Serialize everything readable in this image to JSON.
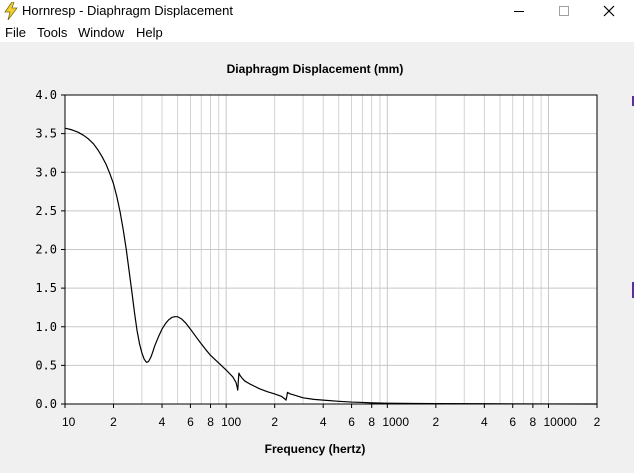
{
  "window": {
    "title": "Hornresp - Diaphragm Displacement",
    "icon": "lightning-bolt-icon",
    "controls": {
      "minimize": "minimize-icon",
      "maximize": "maximize-icon",
      "close": "close-icon"
    }
  },
  "menu": {
    "items": [
      {
        "label": "File"
      },
      {
        "label": "Tools"
      },
      {
        "label": "Window"
      },
      {
        "label": "Help"
      }
    ]
  },
  "colors": {
    "plot_background": "#ffffff",
    "grid": "#c8c8c8",
    "curve": "#000000",
    "window_background": "#f0f0f0",
    "accent_edge": "#5a2e9c"
  },
  "chart_data": {
    "type": "line",
    "title": "Diaphragm Displacement (mm)",
    "xlabel": "Frequency (hertz)",
    "ylabel": "",
    "x_scale": "log",
    "xlim": [
      10,
      20000
    ],
    "ylim": [
      0,
      4
    ],
    "grid": true,
    "y_ticks": [
      "0.0",
      "0.5",
      "1.0",
      "1.5",
      "2.0",
      "2.5",
      "3.0",
      "3.5",
      "4.0"
    ],
    "x_tick_labels": [
      {
        "value": 10,
        "label": "10"
      },
      {
        "value": 20,
        "label": "2"
      },
      {
        "value": 40,
        "label": "4"
      },
      {
        "value": 60,
        "label": "6"
      },
      {
        "value": 80,
        "label": "8"
      },
      {
        "value": 100,
        "label": "100"
      },
      {
        "value": 200,
        "label": "2"
      },
      {
        "value": 400,
        "label": "4"
      },
      {
        "value": 600,
        "label": "6"
      },
      {
        "value": 800,
        "label": "8"
      },
      {
        "value": 1000,
        "label": "1000"
      },
      {
        "value": 2000,
        "label": "2"
      },
      {
        "value": 4000,
        "label": "4"
      },
      {
        "value": 6000,
        "label": "6"
      },
      {
        "value": 8000,
        "label": "8"
      },
      {
        "value": 10000,
        "label": "10000"
      },
      {
        "value": 20000,
        "label": "2"
      }
    ],
    "series": [
      {
        "x": [
          10,
          11,
          12,
          13,
          14,
          15,
          16,
          17,
          18,
          19,
          20,
          21,
          22,
          23,
          24,
          25,
          26,
          27,
          28,
          29,
          30,
          31,
          32,
          33,
          34,
          35,
          36,
          38,
          40,
          42,
          44,
          46,
          48,
          50,
          53,
          56,
          60,
          65,
          70,
          75,
          80,
          90,
          100,
          110,
          115,
          117,
          118,
          119,
          120,
          122,
          125,
          130,
          140,
          150,
          160,
          180,
          200,
          220,
          230,
          235,
          238,
          240,
          245,
          250,
          260,
          280,
          300,
          350,
          400,
          500,
          600,
          700,
          800,
          1000,
          1500,
          2000,
          4000,
          10000,
          20000
        ],
        "y": [
          3.57,
          3.55,
          3.52,
          3.48,
          3.43,
          3.37,
          3.29,
          3.2,
          3.1,
          2.98,
          2.85,
          2.68,
          2.48,
          2.25,
          2.0,
          1.72,
          1.45,
          1.18,
          0.95,
          0.78,
          0.66,
          0.58,
          0.54,
          0.55,
          0.6,
          0.67,
          0.75,
          0.87,
          0.97,
          1.04,
          1.09,
          1.12,
          1.13,
          1.13,
          1.1,
          1.05,
          0.97,
          0.87,
          0.78,
          0.7,
          0.63,
          0.53,
          0.44,
          0.35,
          0.28,
          0.22,
          0.18,
          0.3,
          0.4,
          0.37,
          0.34,
          0.3,
          0.26,
          0.23,
          0.2,
          0.16,
          0.13,
          0.1,
          0.07,
          0.05,
          0.1,
          0.15,
          0.14,
          0.13,
          0.12,
          0.1,
          0.08,
          0.06,
          0.05,
          0.035,
          0.025,
          0.02,
          0.015,
          0.01,
          0.007,
          0.005,
          0.003,
          0.001,
          0.0
        ]
      }
    ]
  }
}
